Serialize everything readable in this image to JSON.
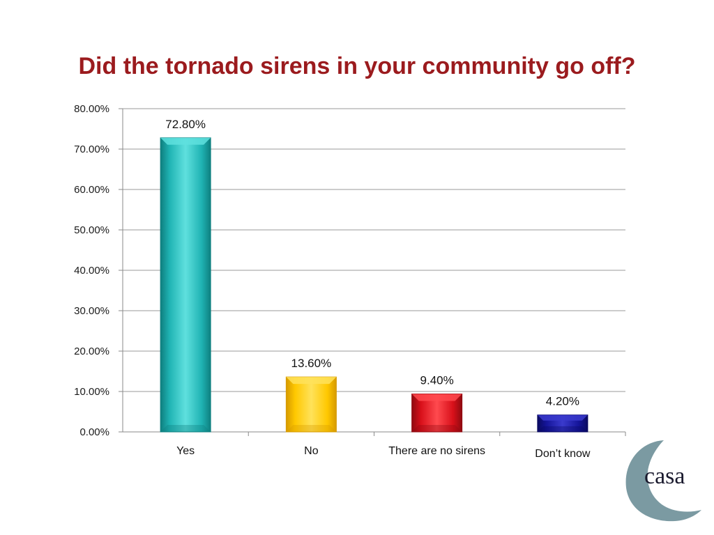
{
  "slide": {
    "title": "Did the tornado sirens in your community go off?"
  },
  "chart_data": {
    "type": "bar",
    "categories": [
      "Yes",
      "No",
      "There are no sirens",
      "Don’t know"
    ],
    "values": [
      72.8,
      13.6,
      9.4,
      4.2
    ],
    "data_labels": [
      "72.80%",
      "13.60%",
      "9.40%",
      "4.20%"
    ],
    "ylim": [
      0,
      80
    ],
    "yticks": [
      0,
      10,
      20,
      30,
      40,
      50,
      60,
      70,
      80
    ],
    "ytick_labels": [
      "0.00%",
      "10.00%",
      "20.00%",
      "30.00%",
      "40.00%",
      "50.00%",
      "60.00%",
      "70.00%",
      "80.00%"
    ],
    "grid": true,
    "legend": "none",
    "bar_colors": [
      "#1fb3b3",
      "#ffc800",
      "#d8101a",
      "#15159a"
    ],
    "bar_dark_colors": [
      "#0e7f7f",
      "#d69a00",
      "#8f0a10",
      "#0a0a60"
    ],
    "bar_light_colors": [
      "#5fe0de",
      "#ffe25a",
      "#ff4a4f",
      "#3a3acc"
    ]
  },
  "logo": {
    "text": "casa",
    "ring_color": "#7b9aa2"
  }
}
